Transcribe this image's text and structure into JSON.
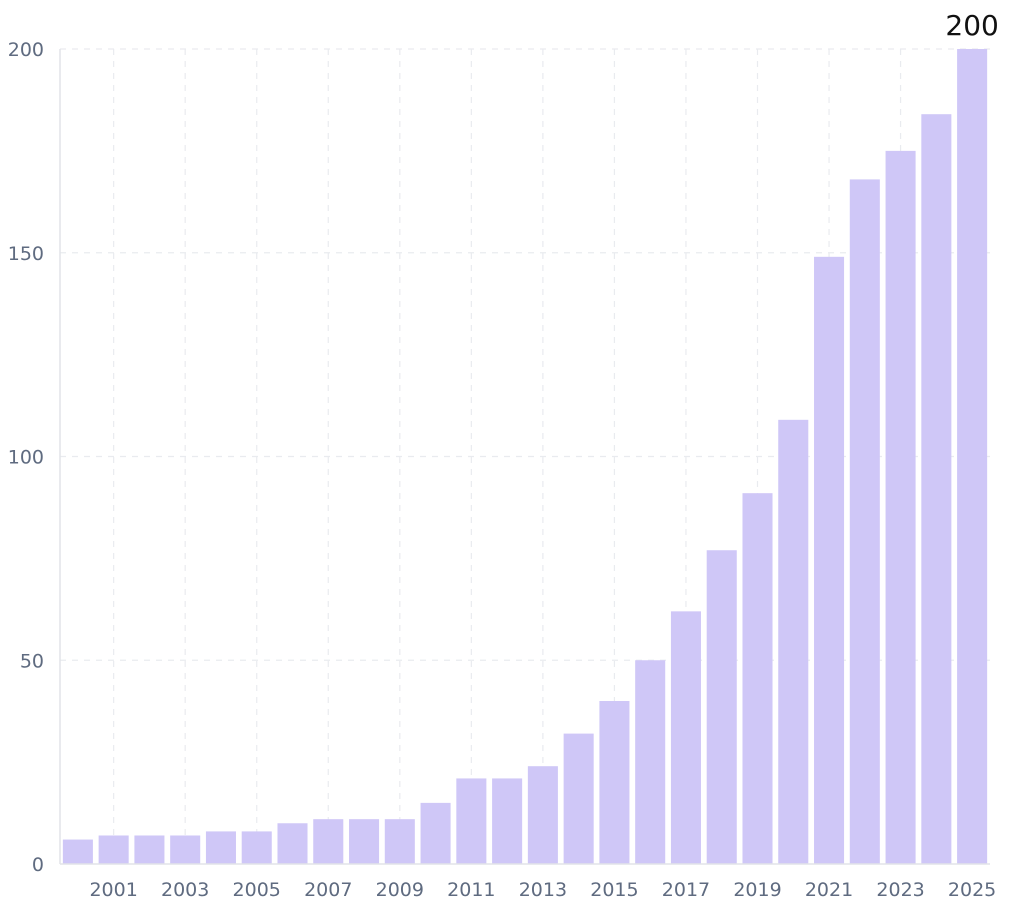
{
  "chart_data": {
    "type": "bar",
    "title": "",
    "xlabel": "",
    "ylabel": "",
    "categories": [
      "2000",
      "2001",
      "2002",
      "2003",
      "2004",
      "2005",
      "2006",
      "2007",
      "2008",
      "2009",
      "2010",
      "2011",
      "2012",
      "2013",
      "2014",
      "2015",
      "2016",
      "2017",
      "2018",
      "2019",
      "2020",
      "2021",
      "2022",
      "2023",
      "2024",
      "2025"
    ],
    "values": [
      6,
      7,
      7,
      7,
      8,
      8,
      10,
      11,
      11,
      11,
      15,
      21,
      21,
      24,
      32,
      40,
      50,
      62,
      77,
      91,
      109,
      149,
      168,
      175,
      184,
      200
    ],
    "x_tick_labels": [
      "2001",
      "2003",
      "2005",
      "2007",
      "2009",
      "2011",
      "2013",
      "2015",
      "2017",
      "2019",
      "2021",
      "2023",
      "2025"
    ],
    "y_ticks": [
      0,
      50,
      100,
      150,
      200
    ],
    "y_tick_labels": [
      "0",
      "50",
      "100",
      "150",
      "200"
    ],
    "ylim": [
      0,
      200
    ],
    "grid": true,
    "data_labels": [
      {
        "category": "2025",
        "text": "200"
      }
    ],
    "bar_color": "#cfc7f7",
    "grid_color": "#e9ebef",
    "tick_label_color": "#5f6b80"
  }
}
